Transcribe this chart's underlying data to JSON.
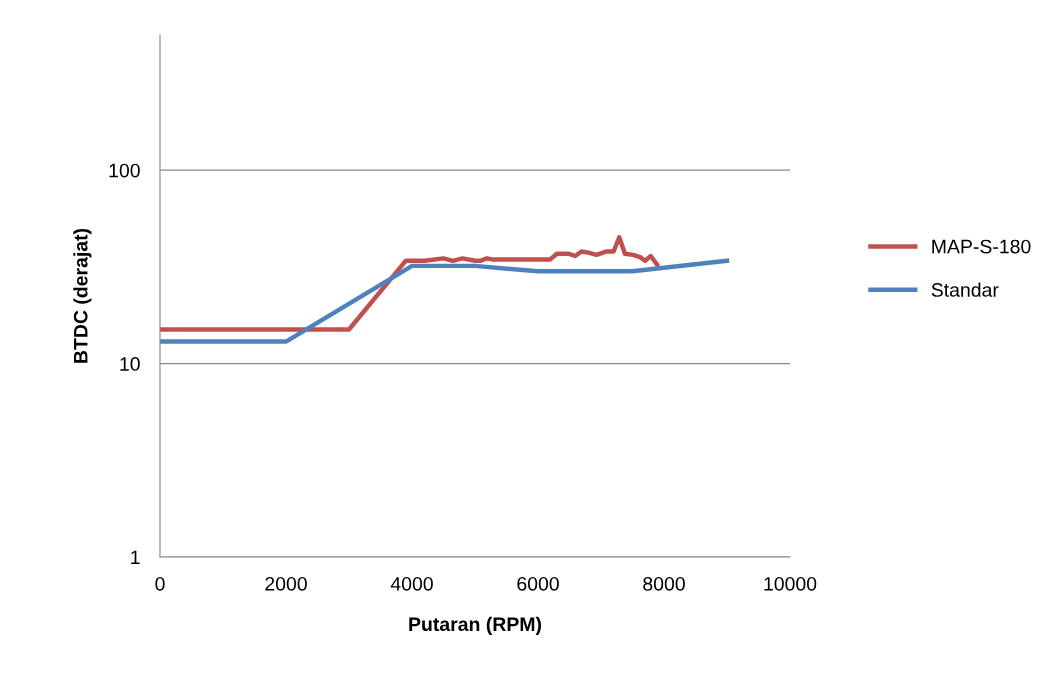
{
  "chart_data": {
    "type": "line",
    "xlabel": "Putaran (RPM)",
    "ylabel": "BTDC (derajat)",
    "log": "y",
    "xlim": [
      0,
      10000
    ],
    "xticks": [
      0,
      2000,
      4000,
      6000,
      8000,
      10000
    ],
    "ylim": [
      1,
      500
    ],
    "yticks": [
      1,
      10,
      100
    ],
    "grid": "y",
    "legend": "right",
    "marker": "none",
    "series": [
      {
        "name": "MAP-S-180",
        "color": "#c0504d",
        "x": [
          0,
          3000,
          3900,
          4200,
          4500,
          4650,
          4800,
          5000,
          5080,
          5190,
          5290,
          6190,
          6300,
          6480,
          6590,
          6690,
          6800,
          6930,
          7090,
          7200,
          7290,
          7380,
          7510,
          7620,
          7700,
          7790,
          7890
        ],
        "values": [
          15,
          15,
          34,
          34,
          35,
          34,
          35,
          34,
          34,
          35,
          34.5,
          34.5,
          37,
          37,
          36,
          38,
          37.5,
          36.5,
          38,
          38,
          45,
          37,
          36.5,
          35.5,
          34,
          36,
          32.5
        ]
      },
      {
        "name": "Standar",
        "color": "#4f81bd",
        "x": [
          0,
          2000,
          4000,
          5000,
          6000,
          7500,
          9000
        ],
        "values": [
          13,
          13,
          32,
          32,
          30,
          30,
          34
        ]
      }
    ]
  }
}
